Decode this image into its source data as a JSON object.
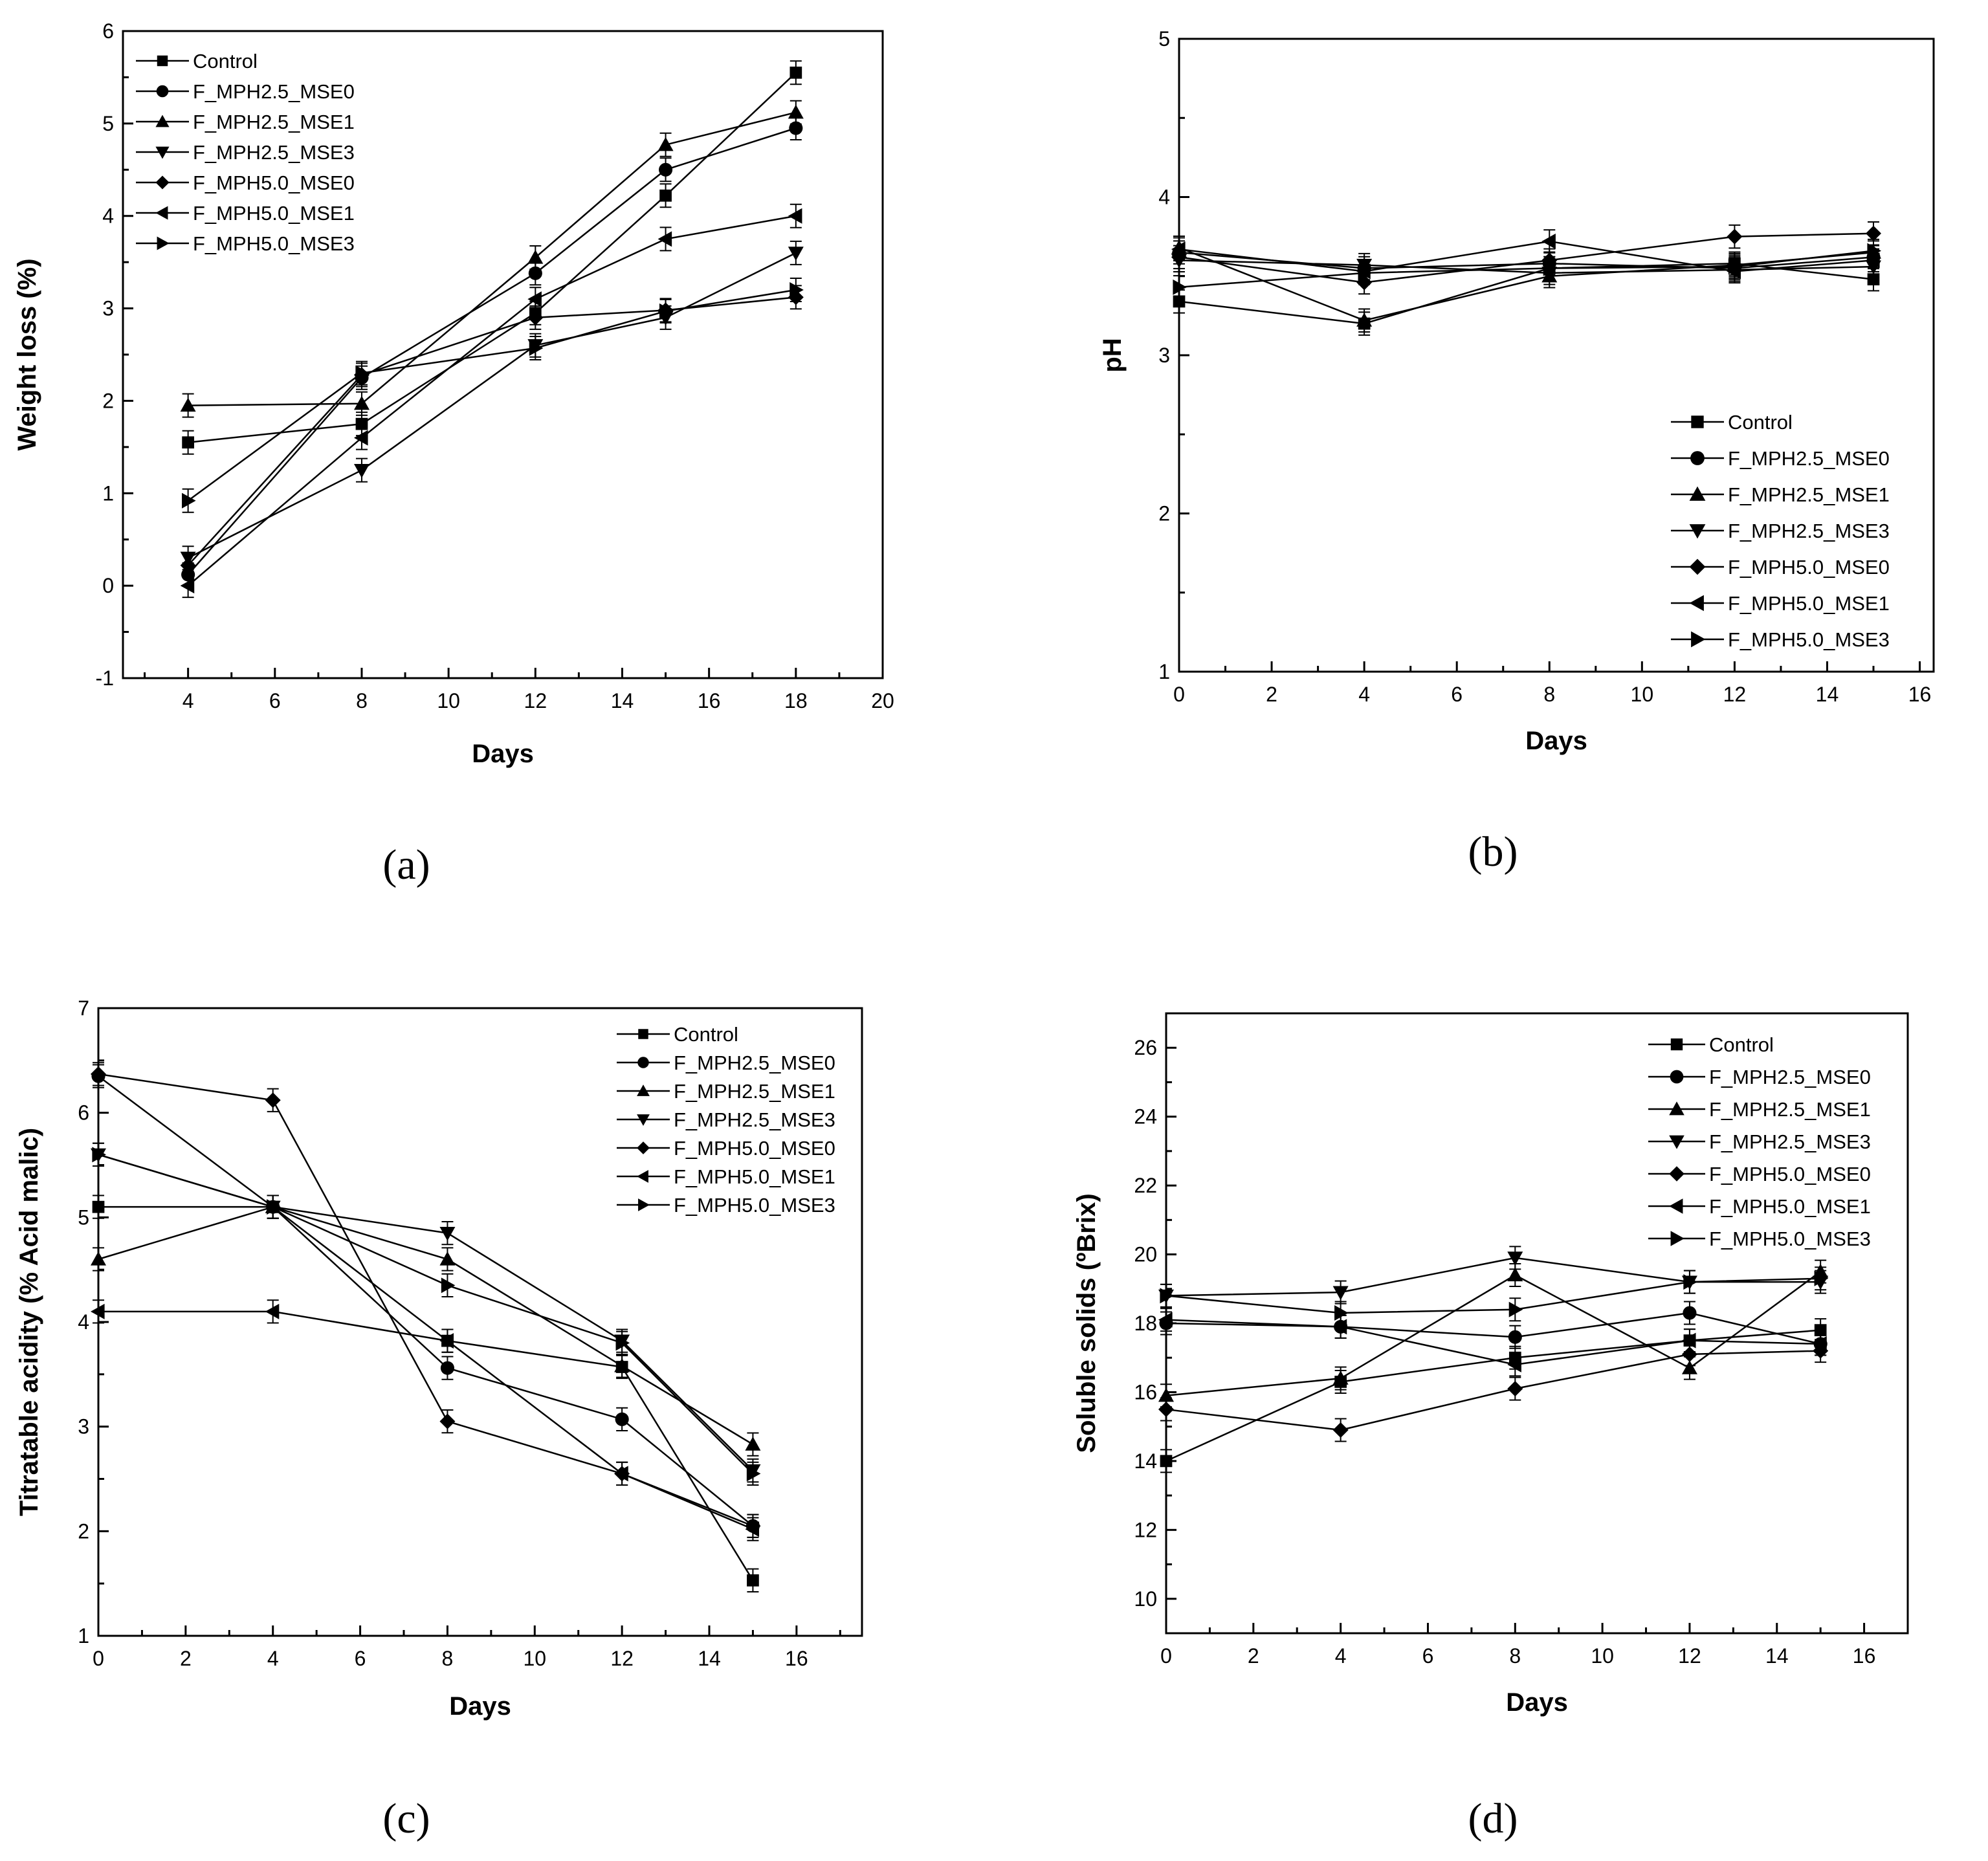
{
  "figure": {
    "legend_labels": [
      "Control",
      "F_MPH2.5_MSE0",
      "F_MPH2.5_MSE1",
      "F_MPH2.5_MSE3",
      "F_MPH5.0_MSE0",
      "F_MPH5.0_MSE1",
      "F_MPH5.0_MSE3"
    ],
    "marker_shapes": [
      "square",
      "circle",
      "triangle-up",
      "triangle-down",
      "diamond",
      "triangle-left",
      "triangle-right"
    ],
    "line_color": "#000000",
    "background_color": "#ffffff"
  },
  "chart_data": [
    {
      "id": "a",
      "caption": "(a)",
      "type": "line",
      "xlabel": "Days",
      "ylabel": "Weight loss (%)",
      "xlim": [
        2.5,
        20
      ],
      "ylim": [
        -1,
        6
      ],
      "xticks": [
        4,
        6,
        8,
        10,
        12,
        14,
        16,
        18,
        20
      ],
      "yticks": [
        -1,
        0,
        1,
        2,
        3,
        4,
        5,
        6
      ],
      "legend_position": "top-left",
      "x": [
        4,
        8,
        12,
        15,
        18
      ],
      "series": [
        {
          "name": "Control",
          "values": [
            1.55,
            1.75,
            2.95,
            4.22,
            5.55
          ]
        },
        {
          "name": "F_MPH2.5_MSE0",
          "values": [
            0.12,
            2.25,
            3.38,
            4.5,
            4.95
          ]
        },
        {
          "name": "F_MPH2.5_MSE1",
          "values": [
            1.95,
            1.97,
            3.55,
            4.77,
            5.12
          ]
        },
        {
          "name": "F_MPH2.5_MSE3",
          "values": [
            0.3,
            1.25,
            2.6,
            2.9,
            3.6
          ]
        },
        {
          "name": "F_MPH5.0_MSE0",
          "values": [
            0.22,
            2.28,
            2.9,
            2.98,
            3.12
          ]
        },
        {
          "name": "F_MPH5.0_MSE1",
          "values": [
            0.0,
            1.6,
            3.1,
            3.75,
            4.0
          ]
        },
        {
          "name": "F_MPH5.0_MSE3",
          "values": [
            0.92,
            2.3,
            2.57,
            2.97,
            3.2
          ]
        }
      ]
    },
    {
      "id": "b",
      "caption": "(b)",
      "type": "line",
      "xlabel": "Days",
      "ylabel": "pH",
      "xlim": [
        0,
        16.3
      ],
      "ylim": [
        1,
        5
      ],
      "xticks": [
        0,
        2,
        4,
        6,
        8,
        10,
        12,
        14,
        16
      ],
      "yticks": [
        1,
        2,
        3,
        4,
        5
      ],
      "legend_position": "bottom-right",
      "x": [
        0,
        4,
        8,
        12,
        15
      ],
      "series": [
        {
          "name": "Control",
          "values": [
            3.34,
            3.2,
            3.55,
            3.58,
            3.48
          ]
        },
        {
          "name": "F_MPH2.5_MSE0",
          "values": [
            3.65,
            3.55,
            3.58,
            3.55,
            3.62
          ]
        },
        {
          "name": "F_MPH2.5_MSE1",
          "values": [
            3.68,
            3.22,
            3.5,
            3.57,
            3.65
          ]
        },
        {
          "name": "F_MPH2.5_MSE3",
          "values": [
            3.6,
            3.57,
            3.52,
            3.54,
            3.56
          ]
        },
        {
          "name": "F_MPH5.0_MSE0",
          "values": [
            3.62,
            3.46,
            3.6,
            3.75,
            3.77
          ]
        },
        {
          "name": "F_MPH5.0_MSE1",
          "values": [
            3.67,
            3.53,
            3.72,
            3.53,
            3.6
          ]
        },
        {
          "name": "F_MPH5.0_MSE3",
          "values": [
            3.43,
            3.52,
            3.55,
            3.56,
            3.66
          ]
        }
      ]
    },
    {
      "id": "c",
      "caption": "(c)",
      "type": "line",
      "xlabel": "Days",
      "ylabel": "Titratable acidity (% Acid malic)",
      "xlim": [
        0,
        17.5
      ],
      "ylim": [
        1,
        7
      ],
      "xticks": [
        0,
        2,
        4,
        6,
        8,
        10,
        12,
        14,
        16
      ],
      "yticks": [
        1,
        2,
        3,
        4,
        5,
        6,
        7
      ],
      "legend_position": "top-right",
      "x": [
        0,
        4,
        8,
        12,
        15
      ],
      "series": [
        {
          "name": "Control",
          "values": [
            5.1,
            5.1,
            3.82,
            3.57,
            1.53
          ]
        },
        {
          "name": "F_MPH2.5_MSE0",
          "values": [
            6.35,
            5.1,
            3.56,
            3.07,
            2.05
          ]
        },
        {
          "name": "F_MPH2.5_MSE1",
          "values": [
            4.6,
            5.1,
            4.6,
            3.58,
            2.83
          ]
        },
        {
          "name": "F_MPH2.5_MSE3",
          "values": [
            5.6,
            5.1,
            4.85,
            3.82,
            2.58
          ]
        },
        {
          "name": "F_MPH5.0_MSE0",
          "values": [
            6.37,
            6.12,
            3.05,
            2.55,
            2.05
          ]
        },
        {
          "name": "F_MPH5.0_MSE1",
          "values": [
            4.1,
            4.1,
            3.82,
            2.55,
            2.02
          ]
        },
        {
          "name": "F_MPH5.0_MSE3",
          "values": [
            5.6,
            5.1,
            4.35,
            3.8,
            2.55
          ]
        }
      ]
    },
    {
      "id": "d",
      "caption": "(d)",
      "type": "line",
      "xlabel": "Days",
      "ylabel": "Soluble solids (ºBrix)",
      "xlim": [
        0,
        17
      ],
      "ylim": [
        9,
        27
      ],
      "xticks": [
        0,
        2,
        4,
        6,
        8,
        10,
        12,
        14,
        16
      ],
      "yticks": [
        10,
        12,
        14,
        16,
        18,
        20,
        22,
        24,
        26
      ],
      "legend_position": "top-right",
      "x": [
        0,
        4,
        8,
        12,
        15
      ],
      "series": [
        {
          "name": "Control",
          "values": [
            14.0,
            16.3,
            17.0,
            17.5,
            17.8
          ]
        },
        {
          "name": "F_MPH2.5_MSE0",
          "values": [
            18.0,
            17.9,
            17.6,
            18.3,
            17.4
          ]
        },
        {
          "name": "F_MPH2.5_MSE1",
          "values": [
            15.9,
            16.4,
            19.4,
            16.7,
            19.5
          ]
        },
        {
          "name": "F_MPH2.5_MSE3",
          "values": [
            18.8,
            18.9,
            19.9,
            19.2,
            19.2
          ]
        },
        {
          "name": "F_MPH5.0_MSE0",
          "values": [
            15.5,
            14.9,
            16.1,
            17.1,
            17.2
          ]
        },
        {
          "name": "F_MPH5.0_MSE1",
          "values": [
            18.1,
            17.9,
            16.8,
            17.5,
            17.4
          ]
        },
        {
          "name": "F_MPH5.0_MSE3",
          "values": [
            18.8,
            18.3,
            18.4,
            19.2,
            19.3
          ]
        }
      ]
    }
  ]
}
